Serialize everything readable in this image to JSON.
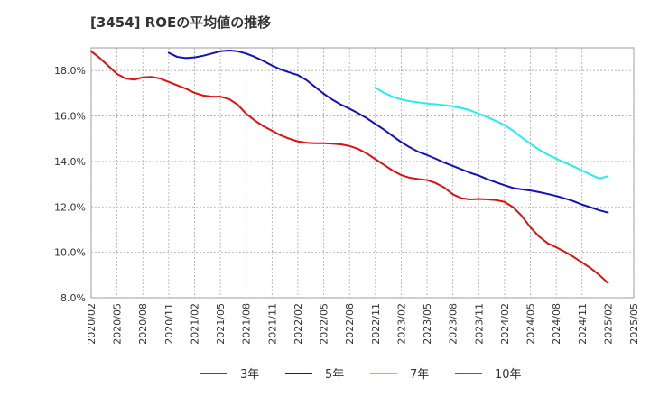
{
  "chart_data": {
    "type": "line",
    "title": "[3454]  ROEの平均値の推移",
    "xlabel": "",
    "ylabel": "",
    "ylim": [
      8.0,
      19.0
    ],
    "y_ticks": [
      8.0,
      10.0,
      12.0,
      14.0,
      16.0,
      18.0
    ],
    "y_tick_labels": [
      "8.0%",
      "10.0%",
      "12.0%",
      "14.0%",
      "16.0%",
      "18.0%"
    ],
    "x_tick_labels": [
      "2020/02",
      "2020/05",
      "2020/08",
      "2020/11",
      "2021/02",
      "2021/05",
      "2021/08",
      "2021/11",
      "2022/02",
      "2022/05",
      "2022/08",
      "2022/11",
      "2023/02",
      "2023/05",
      "2023/08",
      "2023/11",
      "2024/02",
      "2024/05",
      "2024/08",
      "2024/11",
      "2025/02",
      "2025/05"
    ],
    "grid": true,
    "legend_position": "bottom",
    "series": [
      {
        "name": "3年",
        "color": "#dd1111",
        "points": [
          [
            "2020/02",
            18.85
          ],
          [
            "2020/03",
            18.55
          ],
          [
            "2020/04",
            18.2
          ],
          [
            "2020/05",
            17.85
          ],
          [
            "2020/06",
            17.65
          ],
          [
            "2020/07",
            17.6
          ],
          [
            "2020/08",
            17.7
          ],
          [
            "2020/09",
            17.72
          ],
          [
            "2020/10",
            17.65
          ],
          [
            "2020/11",
            17.5
          ],
          [
            "2020/12",
            17.35
          ],
          [
            "2021/01",
            17.2
          ],
          [
            "2021/02",
            17.02
          ],
          [
            "2021/03",
            16.9
          ],
          [
            "2021/04",
            16.85
          ],
          [
            "2021/05",
            16.85
          ],
          [
            "2021/06",
            16.75
          ],
          [
            "2021/07",
            16.5
          ],
          [
            "2021/08",
            16.1
          ],
          [
            "2021/09",
            15.8
          ],
          [
            "2021/10",
            15.55
          ],
          [
            "2021/11",
            15.35
          ],
          [
            "2021/12",
            15.15
          ],
          [
            "2022/01",
            15.0
          ],
          [
            "2022/02",
            14.88
          ],
          [
            "2022/03",
            14.82
          ],
          [
            "2022/04",
            14.8
          ],
          [
            "2022/05",
            14.8
          ],
          [
            "2022/06",
            14.78
          ],
          [
            "2022/07",
            14.75
          ],
          [
            "2022/08",
            14.68
          ],
          [
            "2022/09",
            14.55
          ],
          [
            "2022/10",
            14.35
          ],
          [
            "2022/11",
            14.1
          ],
          [
            "2022/12",
            13.85
          ],
          [
            "2023/01",
            13.6
          ],
          [
            "2023/02",
            13.4
          ],
          [
            "2023/03",
            13.28
          ],
          [
            "2023/04",
            13.22
          ],
          [
            "2023/05",
            13.18
          ],
          [
            "2023/06",
            13.05
          ],
          [
            "2023/07",
            12.85
          ],
          [
            "2023/08",
            12.55
          ],
          [
            "2023/09",
            12.38
          ],
          [
            "2023/10",
            12.33
          ],
          [
            "2023/11",
            12.35
          ],
          [
            "2023/12",
            12.33
          ],
          [
            "2024/01",
            12.3
          ],
          [
            "2024/02",
            12.22
          ],
          [
            "2024/03",
            11.98
          ],
          [
            "2024/04",
            11.6
          ],
          [
            "2024/05",
            11.1
          ],
          [
            "2024/06",
            10.7
          ],
          [
            "2024/07",
            10.4
          ],
          [
            "2024/08",
            10.22
          ],
          [
            "2024/09",
            10.02
          ],
          [
            "2024/10",
            9.8
          ],
          [
            "2024/11",
            9.55
          ],
          [
            "2024/12",
            9.3
          ],
          [
            "2025/01",
            9.0
          ],
          [
            "2025/02",
            8.65
          ]
        ]
      },
      {
        "name": "5年",
        "color": "#1111bb",
        "points": [
          [
            "2020/11",
            18.78
          ],
          [
            "2020/12",
            18.6
          ],
          [
            "2021/01",
            18.55
          ],
          [
            "2021/02",
            18.58
          ],
          [
            "2021/03",
            18.65
          ],
          [
            "2021/04",
            18.75
          ],
          [
            "2021/05",
            18.85
          ],
          [
            "2021/06",
            18.88
          ],
          [
            "2021/07",
            18.85
          ],
          [
            "2021/08",
            18.75
          ],
          [
            "2021/09",
            18.6
          ],
          [
            "2021/10",
            18.42
          ],
          [
            "2021/11",
            18.22
          ],
          [
            "2021/12",
            18.05
          ],
          [
            "2022/01",
            17.92
          ],
          [
            "2022/02",
            17.8
          ],
          [
            "2022/03",
            17.58
          ],
          [
            "2022/04",
            17.28
          ],
          [
            "2022/05",
            16.98
          ],
          [
            "2022/06",
            16.72
          ],
          [
            "2022/07",
            16.5
          ],
          [
            "2022/08",
            16.32
          ],
          [
            "2022/09",
            16.12
          ],
          [
            "2022/10",
            15.9
          ],
          [
            "2022/11",
            15.65
          ],
          [
            "2022/12",
            15.4
          ],
          [
            "2023/01",
            15.12
          ],
          [
            "2023/02",
            14.85
          ],
          [
            "2023/03",
            14.62
          ],
          [
            "2023/04",
            14.42
          ],
          [
            "2023/05",
            14.28
          ],
          [
            "2023/06",
            14.12
          ],
          [
            "2023/07",
            13.95
          ],
          [
            "2023/08",
            13.8
          ],
          [
            "2023/09",
            13.65
          ],
          [
            "2023/10",
            13.5
          ],
          [
            "2023/11",
            13.38
          ],
          [
            "2023/12",
            13.22
          ],
          [
            "2024/01",
            13.08
          ],
          [
            "2024/02",
            12.95
          ],
          [
            "2024/03",
            12.83
          ],
          [
            "2024/04",
            12.77
          ],
          [
            "2024/05",
            12.72
          ],
          [
            "2024/06",
            12.65
          ],
          [
            "2024/07",
            12.57
          ],
          [
            "2024/08",
            12.48
          ],
          [
            "2024/09",
            12.37
          ],
          [
            "2024/10",
            12.25
          ],
          [
            "2024/11",
            12.1
          ],
          [
            "2024/12",
            11.98
          ],
          [
            "2025/01",
            11.85
          ],
          [
            "2025/02",
            11.75
          ]
        ]
      },
      {
        "name": "7年",
        "color": "#22eeee",
        "points": [
          [
            "2022/11",
            17.25
          ],
          [
            "2022/12",
            17.02
          ],
          [
            "2023/01",
            16.85
          ],
          [
            "2023/02",
            16.73
          ],
          [
            "2023/03",
            16.65
          ],
          [
            "2023/04",
            16.6
          ],
          [
            "2023/05",
            16.55
          ],
          [
            "2023/06",
            16.52
          ],
          [
            "2023/07",
            16.48
          ],
          [
            "2023/08",
            16.43
          ],
          [
            "2023/09",
            16.35
          ],
          [
            "2023/10",
            16.25
          ],
          [
            "2023/11",
            16.1
          ],
          [
            "2023/12",
            15.95
          ],
          [
            "2024/01",
            15.78
          ],
          [
            "2024/02",
            15.6
          ],
          [
            "2024/03",
            15.35
          ],
          [
            "2024/04",
            15.05
          ],
          [
            "2024/05",
            14.78
          ],
          [
            "2024/06",
            14.52
          ],
          [
            "2024/07",
            14.3
          ],
          [
            "2024/08",
            14.12
          ],
          [
            "2024/09",
            13.95
          ],
          [
            "2024/10",
            13.78
          ],
          [
            "2024/11",
            13.6
          ],
          [
            "2024/12",
            13.42
          ],
          [
            "2025/01",
            13.25
          ],
          [
            "2025/02",
            13.35
          ]
        ]
      },
      {
        "name": "10年",
        "color": "#228822",
        "points": []
      }
    ]
  }
}
